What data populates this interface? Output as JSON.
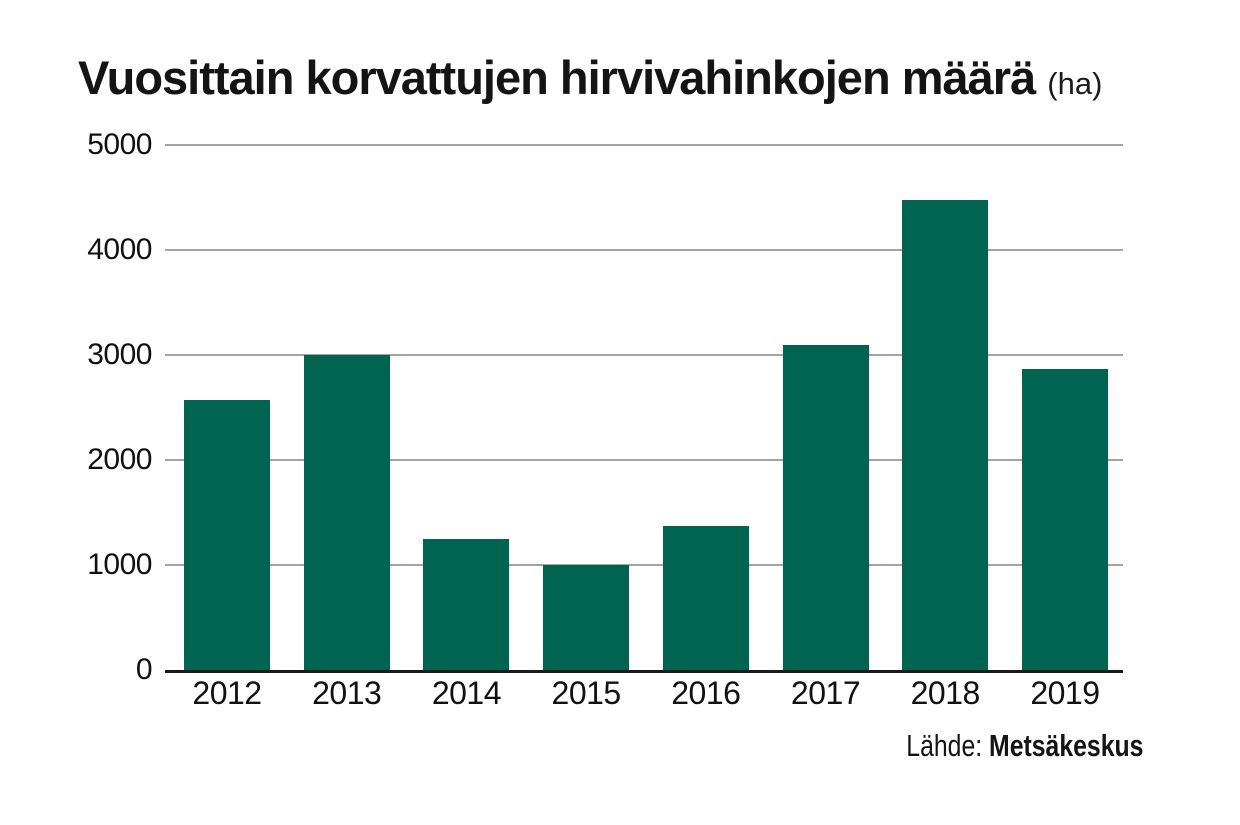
{
  "title": {
    "main": "Vuosittain korvattujen hirvivahinkojen määrä",
    "unit": "(ha)"
  },
  "source": {
    "label": "Lähde:",
    "value": "Metsäkeskus"
  },
  "chart_data": {
    "type": "bar",
    "title": "Vuosittain korvattujen hirvivahinkojen määrä (ha)",
    "categories": [
      "2012",
      "2013",
      "2014",
      "2015",
      "2016",
      "2017",
      "2018",
      "2019"
    ],
    "values": [
      2570,
      3000,
      1250,
      1000,
      1370,
      3100,
      4480,
      2870
    ],
    "xlabel": "",
    "ylabel": "",
    "ylim": [
      0,
      5000
    ],
    "yticks": [
      0,
      1000,
      2000,
      3000,
      4000,
      5000
    ],
    "grid": true,
    "legend": false,
    "bar_color": "#006450",
    "gridline_color": "#a3a3a3",
    "axis_color": "#1a1a1a",
    "text_color": "#111111"
  }
}
